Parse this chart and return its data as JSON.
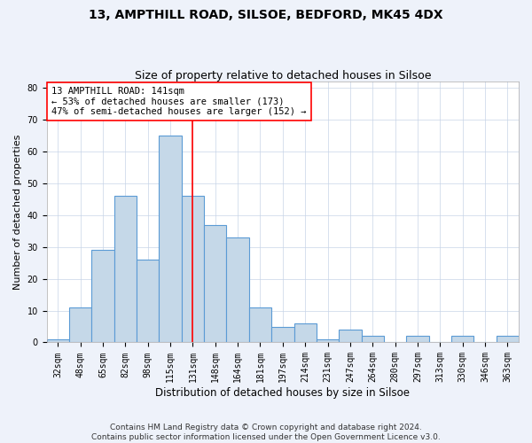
{
  "title": "13, AMPTHILL ROAD, SILSOE, BEDFORD, MK45 4DX",
  "subtitle": "Size of property relative to detached houses in Silsoe",
  "xlabel": "Distribution of detached houses by size in Silsoe",
  "ylabel": "Number of detached properties",
  "footer_line1": "Contains HM Land Registry data © Crown copyright and database right 2024.",
  "footer_line2": "Contains public sector information licensed under the Open Government Licence v3.0.",
  "categories": [
    "32sqm",
    "48sqm",
    "65sqm",
    "82sqm",
    "98sqm",
    "115sqm",
    "131sqm",
    "148sqm",
    "164sqm",
    "181sqm",
    "197sqm",
    "214sqm",
    "231sqm",
    "247sqm",
    "264sqm",
    "280sqm",
    "297sqm",
    "313sqm",
    "330sqm",
    "346sqm",
    "363sqm"
  ],
  "values": [
    1,
    11,
    29,
    46,
    26,
    65,
    46,
    37,
    33,
    11,
    5,
    6,
    1,
    4,
    2,
    0,
    2,
    0,
    2,
    0,
    2
  ],
  "bar_color": "#c5d8e8",
  "bar_edge_color": "#5b9bd5",
  "vline_index": 6,
  "vline_color": "red",
  "annotation_text": "13 AMPTHILL ROAD: 141sqm\n← 53% of detached houses are smaller (173)\n47% of semi-detached houses are larger (152) →",
  "annotation_box_color": "white",
  "annotation_box_edge_color": "red",
  "ylim": [
    0,
    82
  ],
  "yticks": [
    0,
    10,
    20,
    30,
    40,
    50,
    60,
    70,
    80
  ],
  "background_color": "#eef2fa",
  "plot_bg_color": "white",
  "title_fontsize": 10,
  "subtitle_fontsize": 9,
  "xlabel_fontsize": 8.5,
  "ylabel_fontsize": 8,
  "tick_fontsize": 7,
  "annotation_fontsize": 7.5,
  "footer_fontsize": 6.5
}
